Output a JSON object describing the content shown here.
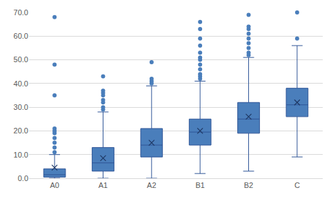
{
  "chart_data": {
    "type": "box",
    "categories": [
      "A0",
      "A1",
      "A2",
      "B1",
      "B2",
      "C"
    ],
    "q1": [
      0.5,
      3,
      9,
      14,
      19,
      26
    ],
    "median": [
      1.5,
      6.5,
      14,
      19.5,
      25,
      31
    ],
    "q3": [
      4,
      13,
      21,
      25,
      32,
      38
    ],
    "lower_whisker": [
      0,
      0,
      0,
      2,
      3,
      9
    ],
    "upper_whisker": [
      10,
      28,
      39,
      41,
      51,
      56
    ],
    "mean": [
      4.5,
      8.5,
      15,
      20,
      26,
      32
    ],
    "outliers": [
      [
        11,
        13,
        15,
        17,
        19,
        20,
        21,
        35,
        48,
        68
      ],
      [
        29,
        30,
        32,
        33,
        35,
        36,
        37,
        43
      ],
      [
        40,
        41,
        42,
        49
      ],
      [
        42,
        43,
        44,
        46,
        48,
        50,
        51,
        53,
        56,
        59,
        63,
        66
      ],
      [
        52,
        53,
        55,
        57,
        59,
        61,
        63,
        64,
        69
      ],
      [
        59,
        70
      ]
    ],
    "color": "#4a7ebb",
    "ylim": [
      0,
      70
    ],
    "yticks": [
      {
        "value": 0,
        "label": "0.0"
      },
      {
        "value": 10,
        "label": "10.0"
      },
      {
        "value": 20,
        "label": "20.0"
      },
      {
        "value": 30,
        "label": "30.0"
      },
      {
        "value": 40,
        "label": "40.0"
      },
      {
        "value": 50,
        "label": "50.0"
      },
      {
        "value": 60,
        "label": "60.0"
      },
      {
        "value": 70,
        "label": "70.0"
      }
    ],
    "grid": true
  }
}
